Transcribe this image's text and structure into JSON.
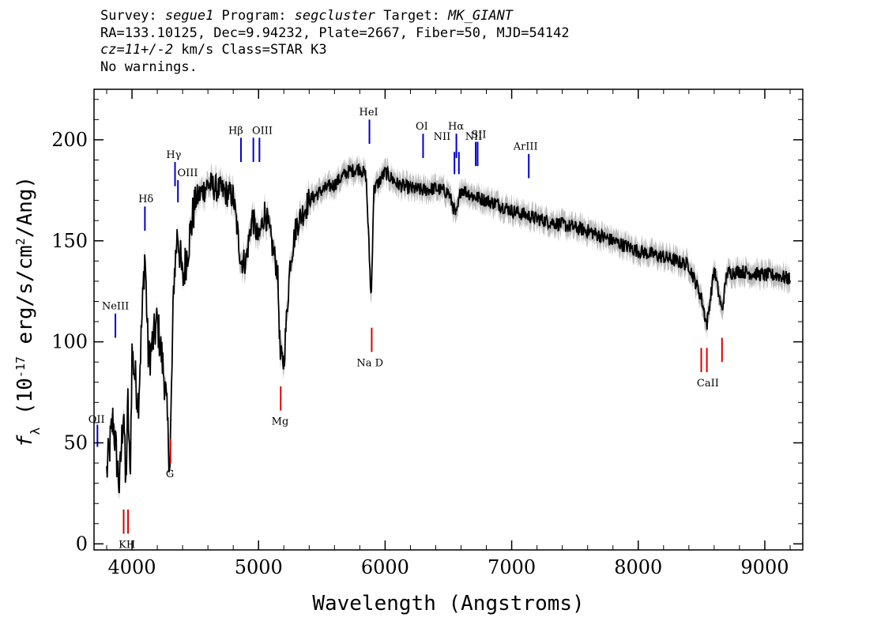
{
  "header": {
    "line1": {
      "survey_label": "Survey: ",
      "survey": "segue1",
      "program_label": " Program: ",
      "program": "segcluster",
      "target_label": " Target: ",
      "target": "MK_GIANT"
    },
    "line2": "RA=133.10125, Dec=9.94232, Plate=2667, Fiber=50, MJD=54142",
    "line3": {
      "cz": "cz=11+/-2",
      "rest": " km/s Class=STAR K3"
    },
    "line4": "No warnings."
  },
  "chart_data": {
    "type": "line",
    "xlabel": "Wavelength (Angstroms)",
    "ylabel_parts": [
      "f",
      "λ",
      " (10",
      "-17",
      " erg/s/cm",
      "2",
      "/Ang)"
    ],
    "xlim": [
      3700,
      9300
    ],
    "ylim": [
      -3,
      225
    ],
    "xticks": [
      4000,
      5000,
      6000,
      7000,
      8000,
      9000
    ],
    "yticks": [
      0,
      50,
      100,
      150,
      200
    ],
    "flux_color": "#000000",
    "error_band_color": "#bbbbbb",
    "emission_line_color": "#0000cc",
    "absorption_line_color": "#dd0000",
    "spectrum_anchors": [
      [
        3800,
        35
      ],
      [
        3850,
        62
      ],
      [
        3900,
        28
      ],
      [
        3935,
        70
      ],
      [
        3950,
        25
      ],
      [
        3968,
        70
      ],
      [
        3985,
        30
      ],
      [
        4000,
        95
      ],
      [
        4050,
        70
      ],
      [
        4102,
        145
      ],
      [
        4130,
        90
      ],
      [
        4200,
        110
      ],
      [
        4260,
        80
      ],
      [
        4300,
        38
      ],
      [
        4330,
        130
      ],
      [
        4360,
        155
      ],
      [
        4400,
        130
      ],
      [
        4450,
        150
      ],
      [
        4500,
        170
      ],
      [
        4600,
        178
      ],
      [
        4700,
        175
      ],
      [
        4800,
        172
      ],
      [
        4861,
        140
      ],
      [
        4900,
        140
      ],
      [
        4950,
        162
      ],
      [
        5000,
        150
      ],
      [
        5050,
        165
      ],
      [
        5100,
        150
      ],
      [
        5150,
        135
      ],
      [
        5172,
        92
      ],
      [
        5200,
        90
      ],
      [
        5250,
        140
      ],
      [
        5300,
        158
      ],
      [
        5400,
        170
      ],
      [
        5500,
        175
      ],
      [
        5600,
        178
      ],
      [
        5700,
        184
      ],
      [
        5800,
        186
      ],
      [
        5850,
        182
      ],
      [
        5890,
        120
      ],
      [
        5910,
        175
      ],
      [
        6000,
        184
      ],
      [
        6100,
        178
      ],
      [
        6200,
        176
      ],
      [
        6300,
        175
      ],
      [
        6400,
        176
      ],
      [
        6500,
        174
      ],
      [
        6563,
        162
      ],
      [
        6600,
        176
      ],
      [
        6700,
        172
      ],
      [
        6800,
        170
      ],
      [
        6900,
        168
      ],
      [
        7000,
        165
      ],
      [
        7100,
        163
      ],
      [
        7200,
        161
      ],
      [
        7400,
        158
      ],
      [
        7600,
        155
      ],
      [
        7800,
        150
      ],
      [
        8000,
        145
      ],
      [
        8200,
        142
      ],
      [
        8400,
        138
      ],
      [
        8498,
        122
      ],
      [
        8542,
        108
      ],
      [
        8600,
        136
      ],
      [
        8662,
        115
      ],
      [
        8700,
        134
      ],
      [
        8800,
        135
      ],
      [
        9000,
        133
      ],
      [
        9100,
        133
      ],
      [
        9200,
        131
      ]
    ],
    "emission_lines": [
      {
        "name": "OII",
        "wave": 3727,
        "y_bottom": 48,
        "y_top": 59
      },
      {
        "name": "NeIII",
        "wave": 3869,
        "y_bottom": 102,
        "y_top": 114
      },
      {
        "name": "Hδ",
        "wave": 4102,
        "y_bottom": 155,
        "y_top": 167
      },
      {
        "name": "Hγ",
        "wave": 4340,
        "y_bottom": 177,
        "y_top": 189
      },
      {
        "name": "OIII",
        "wave": 4363,
        "y_bottom": 169,
        "y_top": 180
      },
      {
        "name": "Hβ",
        "wave": 4861,
        "y_bottom": 189,
        "y_top": 201
      },
      {
        "name": "OIII",
        "wave": 4959,
        "y_bottom": 189,
        "y_top": 201
      },
      {
        "name": "OIII",
        "wave": 5007,
        "y_bottom": 189,
        "y_top": 201
      },
      {
        "name": "HeI",
        "wave": 5876,
        "y_bottom": 198,
        "y_top": 210
      },
      {
        "name": "OI",
        "wave": 6300,
        "y_bottom": 191,
        "y_top": 203
      },
      {
        "name": "NII",
        "wave": 6548,
        "y_bottom": 183,
        "y_top": 194
      },
      {
        "name": "Hα",
        "wave": 6563,
        "y_bottom": 191,
        "y_top": 203
      },
      {
        "name": "NII",
        "wave": 6583,
        "y_bottom": 183,
        "y_top": 194
      },
      {
        "name": "SII",
        "wave": 6716,
        "y_bottom": 187,
        "y_top": 199
      },
      {
        "name": "SII",
        "wave": 6731,
        "y_bottom": 187,
        "y_top": 199
      },
      {
        "name": "ArIII",
        "wave": 7135,
        "y_bottom": 181,
        "y_top": 193
      }
    ],
    "absorption_lines": [
      {
        "name": "K",
        "wave": 3934,
        "y_bottom": 5,
        "y_top": 17
      },
      {
        "name": "H",
        "wave": 3969,
        "y_bottom": 5,
        "y_top": 17
      },
      {
        "name": "G",
        "wave": 4304,
        "y_bottom": 40,
        "y_top": 52
      },
      {
        "name": "Mg",
        "wave": 5175,
        "y_bottom": 66,
        "y_top": 78
      },
      {
        "name": "Na D",
        "wave": 5894,
        "y_bottom": 95,
        "y_top": 107
      },
      {
        "name": "CaII",
        "wave": 8498,
        "y_bottom": 85,
        "y_top": 97
      },
      {
        "name": "CaII",
        "wave": 8542,
        "y_bottom": 85,
        "y_top": 97
      },
      {
        "name": "CaII",
        "wave": 8662,
        "y_bottom": 90,
        "y_top": 102
      }
    ],
    "line_labels": [
      {
        "text": "OII",
        "wave": 3720,
        "y": 60,
        "color_group": "emission"
      },
      {
        "text": "NeIII",
        "wave": 3869,
        "y": 116,
        "color_group": "emission"
      },
      {
        "text": "Hδ",
        "wave": 4110,
        "y": 169,
        "color_group": "emission"
      },
      {
        "text": "Hγ",
        "wave": 4330,
        "y": 191,
        "color_group": "emission"
      },
      {
        "text": "OIII",
        "wave": 4440,
        "y": 182,
        "color_group": "emission"
      },
      {
        "text": "Hβ",
        "wave": 4820,
        "y": 203,
        "color_group": "emission"
      },
      {
        "text": "OIII",
        "wave": 5030,
        "y": 203,
        "color_group": "emission"
      },
      {
        "text": "HeI",
        "wave": 5870,
        "y": 212,
        "color_group": "emission"
      },
      {
        "text": "OI",
        "wave": 6290,
        "y": 205,
        "color_group": "emission"
      },
      {
        "text": "NII",
        "wave": 6450,
        "y": 200,
        "color_group": "emission"
      },
      {
        "text": "Hα",
        "wave": 6560,
        "y": 205,
        "color_group": "emission"
      },
      {
        "text": "NII",
        "wave": 6700,
        "y": 200,
        "color_group": "emission"
      },
      {
        "text": "SII",
        "wave": 6740,
        "y": 201,
        "color_group": "emission"
      },
      {
        "text": "ArIII",
        "wave": 7110,
        "y": 195,
        "color_group": "emission"
      },
      {
        "text": "KH",
        "wave": 3960,
        "y": -2,
        "color_group": "absorption"
      },
      {
        "text": "G",
        "wave": 4300,
        "y": 33,
        "color_group": "absorption"
      },
      {
        "text": "Mg",
        "wave": 5170,
        "y": 59,
        "color_group": "absorption"
      },
      {
        "text": "Na D",
        "wave": 5880,
        "y": 88,
        "color_group": "absorption"
      },
      {
        "text": "CaII",
        "wave": 8550,
        "y": 78,
        "color_group": "absorption"
      }
    ]
  }
}
